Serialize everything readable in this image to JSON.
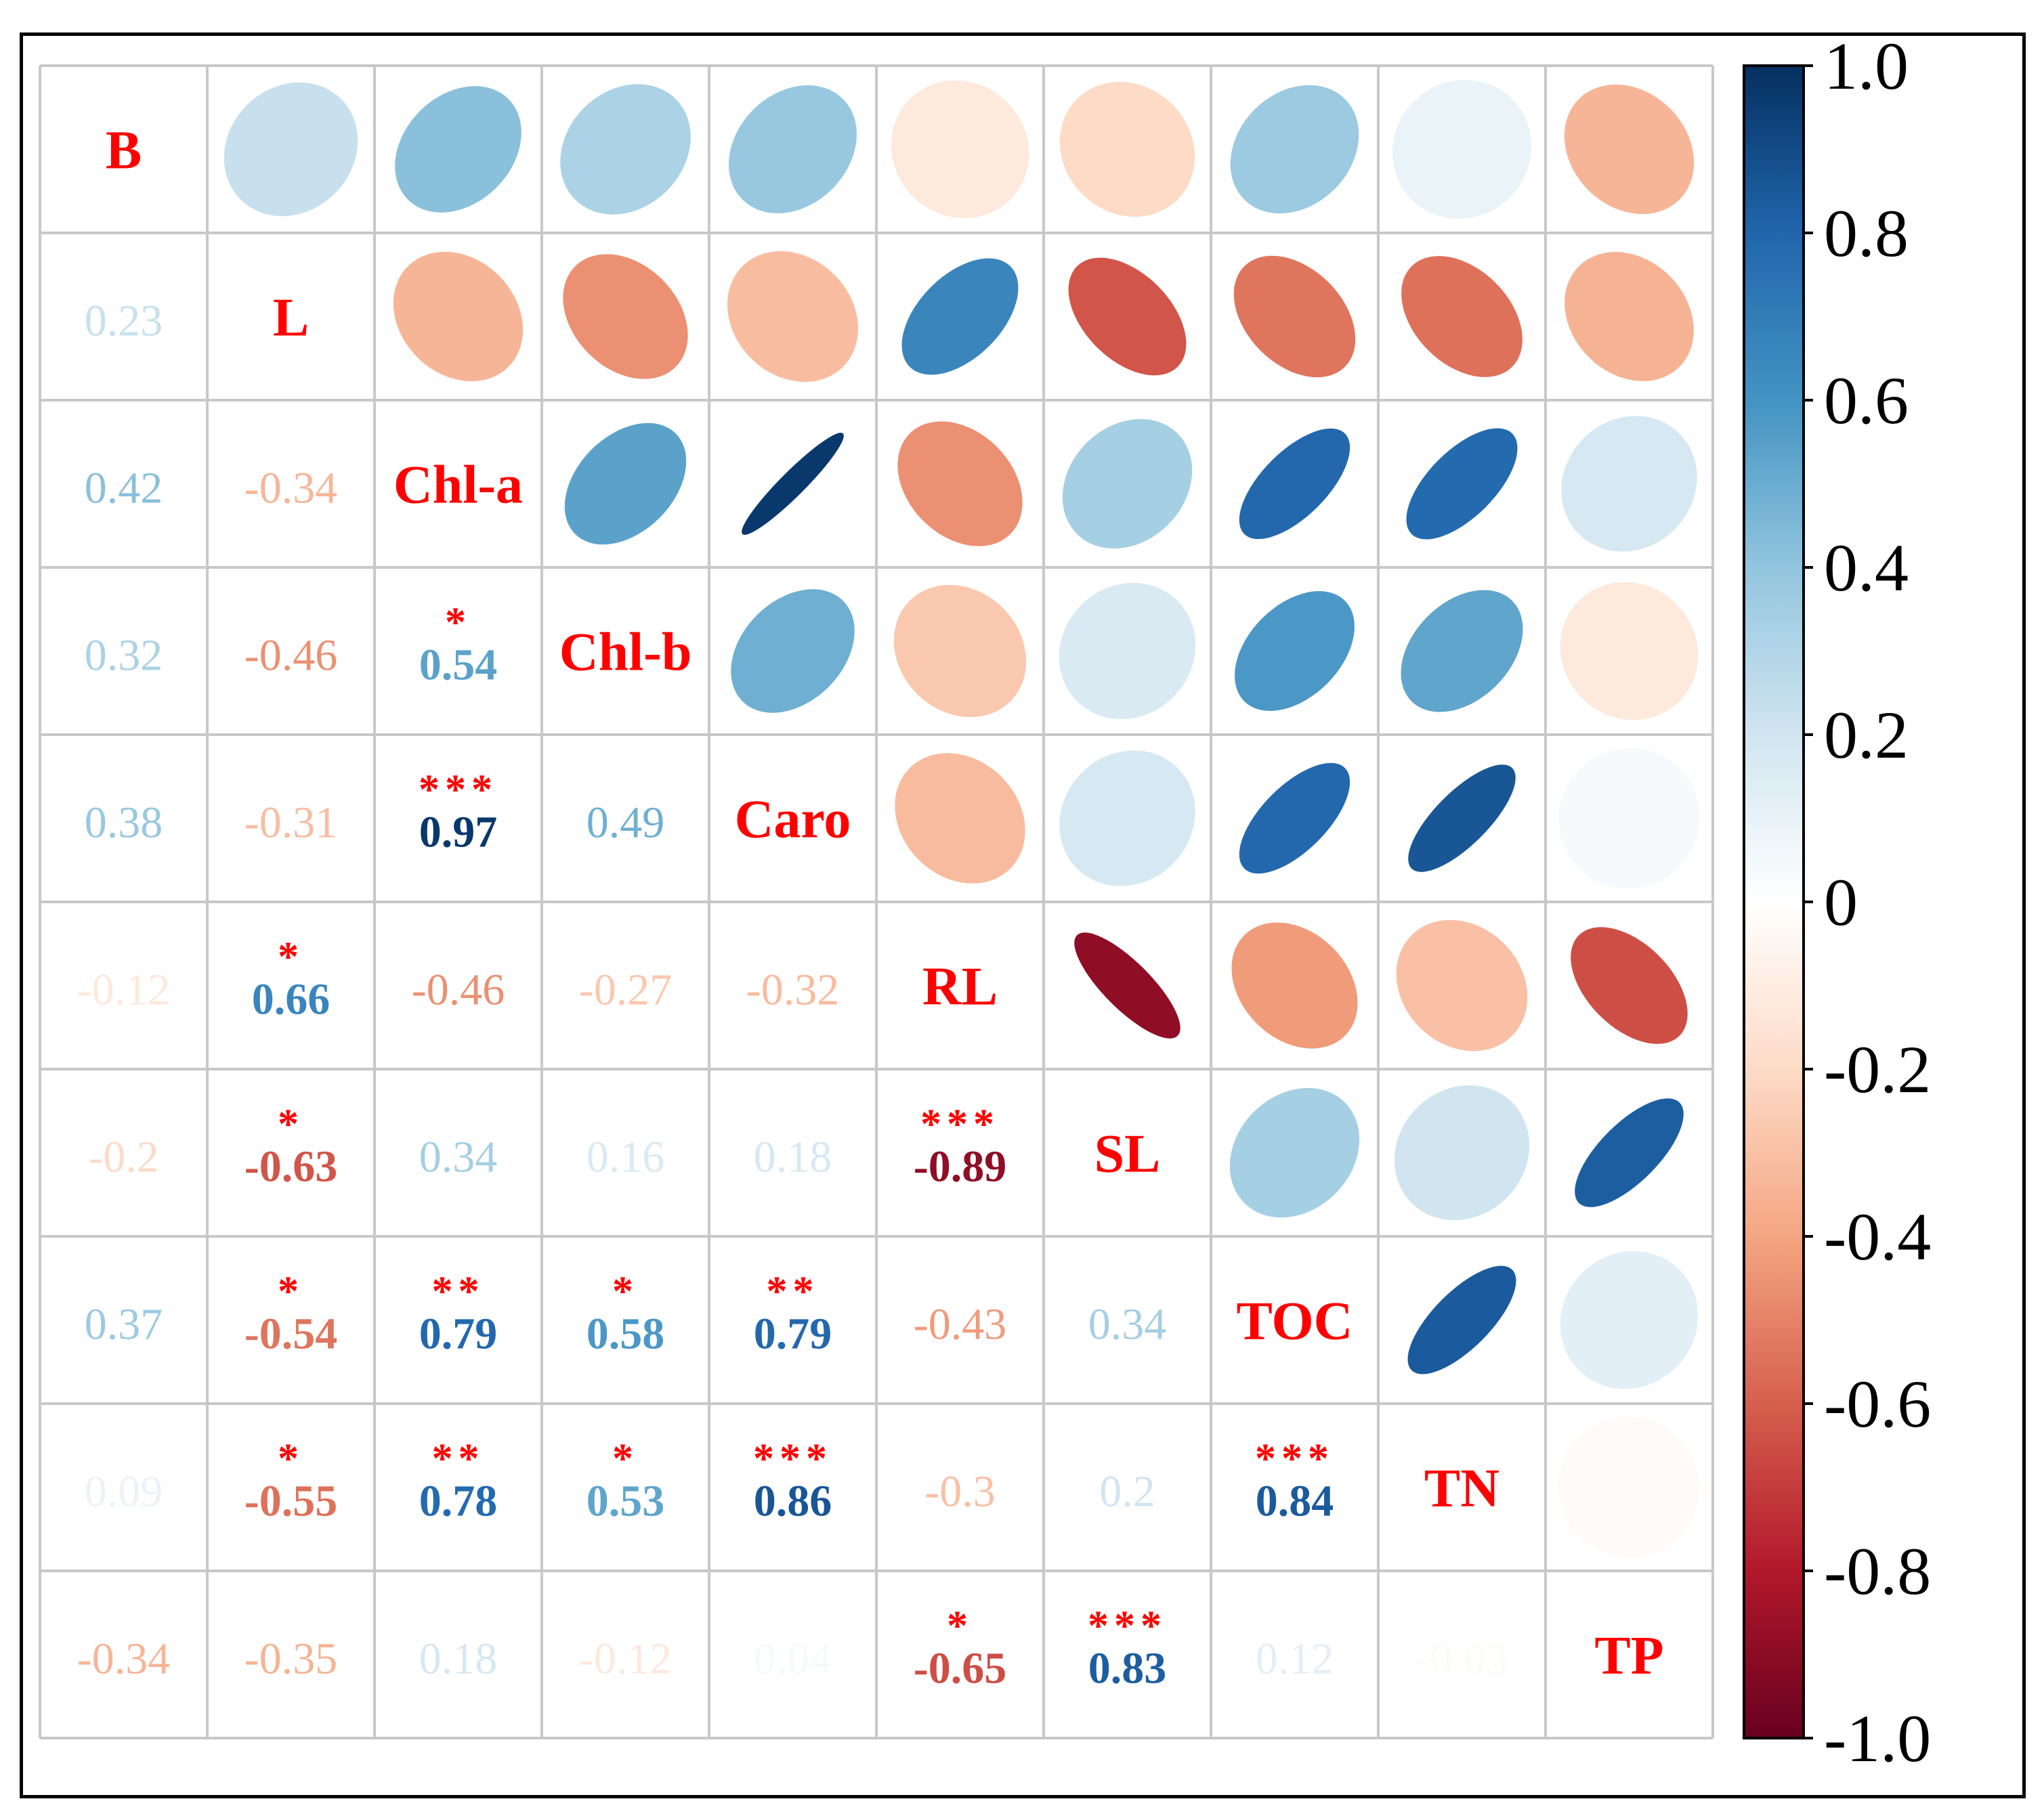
{
  "chart_data": {
    "type": "correlation-matrix",
    "variables": [
      "B",
      "L",
      "Chl-a",
      "Chl-b",
      "Caro",
      "RL",
      "SL",
      "TOC",
      "TN",
      "TP"
    ],
    "matrix": [
      [
        1,
        0.23,
        0.42,
        0.32,
        0.38,
        -0.12,
        -0.2,
        0.37,
        0.09,
        -0.34
      ],
      [
        0.23,
        1,
        -0.34,
        -0.46,
        -0.31,
        0.66,
        -0.63,
        -0.54,
        -0.55,
        -0.35
      ],
      [
        0.42,
        -0.34,
        1,
        0.54,
        0.97,
        -0.46,
        0.34,
        0.79,
        0.78,
        0.18
      ],
      [
        0.32,
        -0.46,
        0.54,
        1,
        0.49,
        -0.27,
        0.16,
        0.58,
        0.53,
        -0.12
      ],
      [
        0.38,
        -0.31,
        0.97,
        0.49,
        1,
        -0.32,
        0.18,
        0.79,
        0.86,
        0.04
      ],
      [
        -0.12,
        0.66,
        -0.46,
        -0.27,
        -0.32,
        1,
        -0.89,
        -0.43,
        -0.3,
        -0.65
      ],
      [
        -0.2,
        -0.63,
        0.34,
        0.16,
        0.18,
        -0.89,
        1,
        0.34,
        0.2,
        0.83
      ],
      [
        0.37,
        -0.54,
        0.79,
        0.58,
        0.79,
        -0.43,
        0.34,
        1,
        0.84,
        0.12
      ],
      [
        0.09,
        -0.55,
        0.78,
        0.53,
        0.86,
        -0.3,
        0.2,
        0.84,
        1,
        -0.03
      ],
      [
        -0.34,
        -0.35,
        0.18,
        -0.12,
        0.04,
        -0.65,
        0.83,
        0.12,
        -0.03,
        1
      ]
    ],
    "lower_labels": [
      [],
      [
        "0.23"
      ],
      [
        "0.42",
        "-0.34"
      ],
      [
        "0.32",
        "-0.46",
        "0.54"
      ],
      [
        "0.38",
        "-0.31",
        "0.97",
        "0.49"
      ],
      [
        "-0.12",
        "0.66",
        "-0.46",
        "-0.27",
        "-0.32"
      ],
      [
        "-0.2",
        "-0.63",
        "0.34",
        "0.16",
        "0.18",
        "-0.89"
      ],
      [
        "0.37",
        "-0.54",
        "0.79",
        "0.58",
        "0.79",
        "-0.43",
        "0.34"
      ],
      [
        "0.09",
        "-0.55",
        "0.78",
        "0.53",
        "0.86",
        "-0.3",
        "0.2",
        "0.84"
      ],
      [
        "-0.34",
        "-0.35",
        "0.18",
        "-0.12",
        "0.04",
        "-0.65",
        "0.83",
        "0.12",
        "-0.03"
      ]
    ],
    "significance": [
      [],
      [
        ""
      ],
      [
        "",
        ""
      ],
      [
        "",
        "",
        "*"
      ],
      [
        "",
        "",
        "***",
        ""
      ],
      [
        "",
        "*",
        "",
        "",
        ""
      ],
      [
        "",
        "*",
        "",
        "",
        "",
        "***"
      ],
      [
        "",
        "*",
        "**",
        "*",
        "**",
        "",
        ""
      ],
      [
        "",
        "*",
        "**",
        "*",
        "***",
        "",
        "",
        "***"
      ],
      [
        "",
        "",
        "",
        "",
        "",
        "*",
        "***",
        "",
        ""
      ]
    ],
    "upper_style": "ellipse",
    "lower_style": "number",
    "diagonal_style": "variable-name",
    "colorbar": {
      "range": [
        -1,
        1
      ],
      "ticks": [
        "1.0",
        "0.8",
        "0.6",
        "0.4",
        "0.2",
        "0",
        "-0.2",
        "-0.4",
        "-0.6",
        "-0.8",
        "-1.0"
      ],
      "placement": "right"
    },
    "colors": {
      "positive_end": "#053061",
      "negative_end": "#67001f",
      "zero": "#ffffff",
      "label": "#ff0000",
      "grid": "#c8c8c8"
    }
  }
}
